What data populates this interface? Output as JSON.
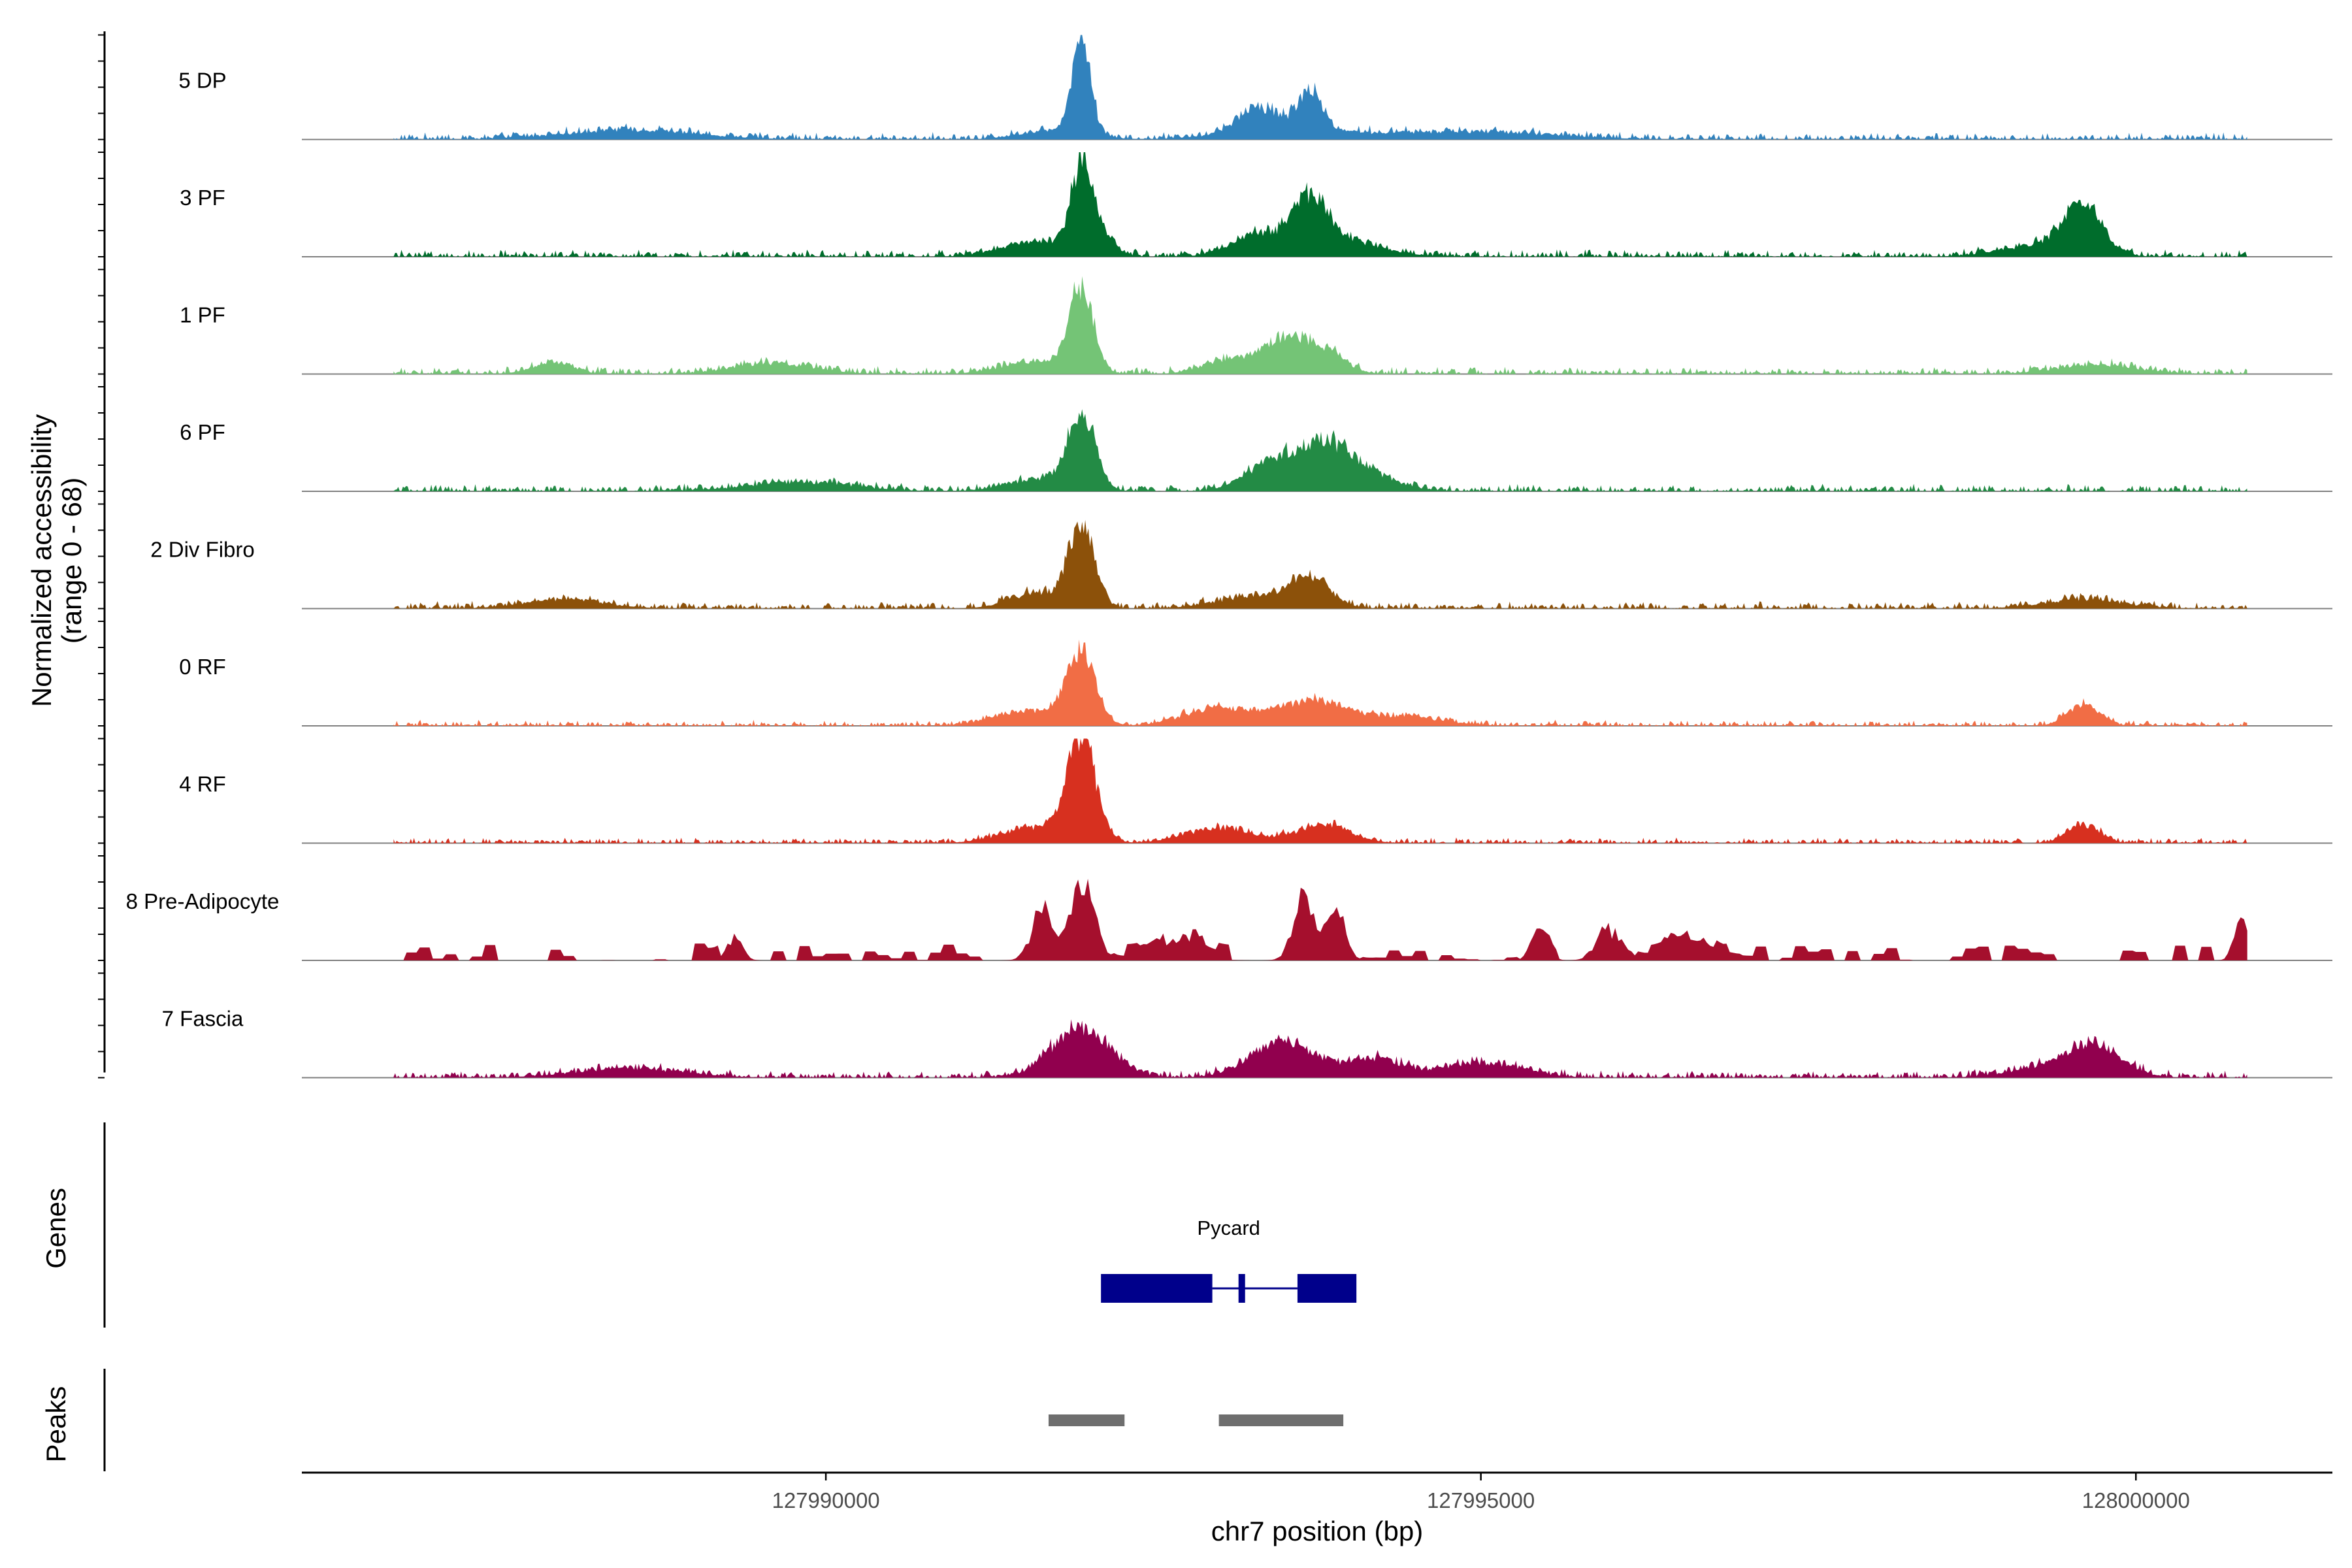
{
  "chart_data": {
    "type": "area",
    "title": "",
    "ylabel": "Normalized accessibility",
    "ylabel_range": "(range 0 - 68)",
    "ylim": [
      0,
      68
    ],
    "xlabel": "chr7 position (bp)",
    "xlim": [
      127986000,
      128001500
    ],
    "x_ticks": [
      127990000,
      127995000,
      128000000
    ],
    "x_tick_labels": [
      "127990000",
      "127995000",
      "128000000"
    ],
    "track_start": 127986700,
    "track_end": 128000850,
    "series": [
      {
        "name": "5 DP",
        "color": "#3182BD",
        "peaks": [
          [
            127991950,
            66,
            70
          ],
          [
            127991750,
            6,
            250
          ],
          [
            127993300,
            14,
            150
          ],
          [
            127993700,
            24,
            90
          ],
          [
            127993500,
            8,
            400
          ],
          [
            127988500,
            6,
            500
          ],
          [
            127994900,
            5,
            600
          ]
        ],
        "noise": 5
      },
      {
        "name": "3 PF",
        "color": "#006D2C",
        "peaks": [
          [
            127991950,
            56,
            80
          ],
          [
            127991600,
            10,
            250
          ],
          [
            127992100,
            14,
            100
          ],
          [
            127993300,
            14,
            200
          ],
          [
            127993700,
            32,
            120
          ],
          [
            127993900,
            12,
            300
          ],
          [
            127999600,
            30,
            140
          ],
          [
            127999300,
            8,
            300
          ]
        ],
        "noise": 5
      },
      {
        "name": "1 PF",
        "color": "#74C476",
        "peaks": [
          [
            127991950,
            56,
            90
          ],
          [
            127991600,
            8,
            250
          ],
          [
            127993100,
            10,
            200
          ],
          [
            127993500,
            22,
            150
          ],
          [
            127993800,
            16,
            150
          ],
          [
            127987900,
            7,
            150
          ],
          [
            127989600,
            7,
            300
          ],
          [
            127999700,
            6,
            300
          ]
        ],
        "noise": 5
      },
      {
        "name": "6 PF",
        "color": "#238B45",
        "peaks": [
          [
            127991950,
            50,
            100
          ],
          [
            127991650,
            8,
            250
          ],
          [
            127993400,
            18,
            200
          ],
          [
            127993800,
            26,
            200
          ],
          [
            127994100,
            10,
            250
          ],
          [
            127989800,
            6,
            400
          ]
        ],
        "noise": 5
      },
      {
        "name": "2 Div Fibro",
        "color": "#8C510A",
        "peaks": [
          [
            127991950,
            54,
            100
          ],
          [
            127991600,
            10,
            200
          ],
          [
            127993700,
            18,
            150
          ],
          [
            127993300,
            8,
            300
          ],
          [
            127988000,
            6,
            300
          ],
          [
            127999600,
            6,
            300
          ]
        ],
        "noise": 5
      },
      {
        "name": "0 RF",
        "color": "#F16D45",
        "peaks": [
          [
            127991950,
            46,
            110
          ],
          [
            127991550,
            10,
            250
          ],
          [
            127993000,
            12,
            250
          ],
          [
            127993700,
            16,
            250
          ],
          [
            127999600,
            14,
            120
          ],
          [
            127994400,
            6,
            300
          ]
        ],
        "noise": 4
      },
      {
        "name": "4 RF",
        "color": "#D7301F",
        "peaks": [
          [
            127991950,
            66,
            110
          ],
          [
            127991600,
            10,
            250
          ],
          [
            127993000,
            10,
            250
          ],
          [
            127993800,
            12,
            200
          ],
          [
            127999600,
            12,
            120
          ]
        ],
        "noise": 4
      },
      {
        "name": "8 Pre-Adipocyte",
        "color": "#A50F2D",
        "peaks": [
          [
            127991950,
            45,
            100
          ],
          [
            127991650,
            30,
            80
          ],
          [
            127993650,
            40,
            80
          ],
          [
            127993900,
            30,
            70
          ],
          [
            127995450,
            22,
            60
          ],
          [
            127996000,
            18,
            100
          ],
          [
            128000800,
            25,
            50
          ],
          [
            127992700,
            12,
            150
          ],
          [
            127989300,
            14,
            60
          ],
          [
            127996600,
            12,
            150
          ]
        ],
        "noise": 10,
        "blocky": true
      },
      {
        "name": "7 Fascia",
        "color": "#91004E",
        "peaks": [
          [
            127991950,
            34,
            220
          ],
          [
            127993500,
            24,
            250
          ],
          [
            127994200,
            12,
            200
          ],
          [
            127995000,
            10,
            300
          ],
          [
            127999700,
            18,
            200
          ],
          [
            127999400,
            8,
            300
          ],
          [
            127988500,
            6,
            400
          ]
        ],
        "noise": 5
      }
    ],
    "genes": {
      "label": "Genes",
      "items": [
        {
          "name": "Pycard",
          "color": "#00008B",
          "exons": [
            [
              127992100,
              127992950
            ],
            [
              127993150,
              127993200
            ],
            [
              127993600,
              127994050
            ]
          ],
          "intron": [
            127992950,
            127993600
          ]
        }
      ]
    },
    "peaks_track": {
      "label": "Peaks",
      "color": "#6E6E6E",
      "regions": [
        [
          127991700,
          127992280
        ],
        [
          127993000,
          127993950
        ]
      ]
    }
  }
}
